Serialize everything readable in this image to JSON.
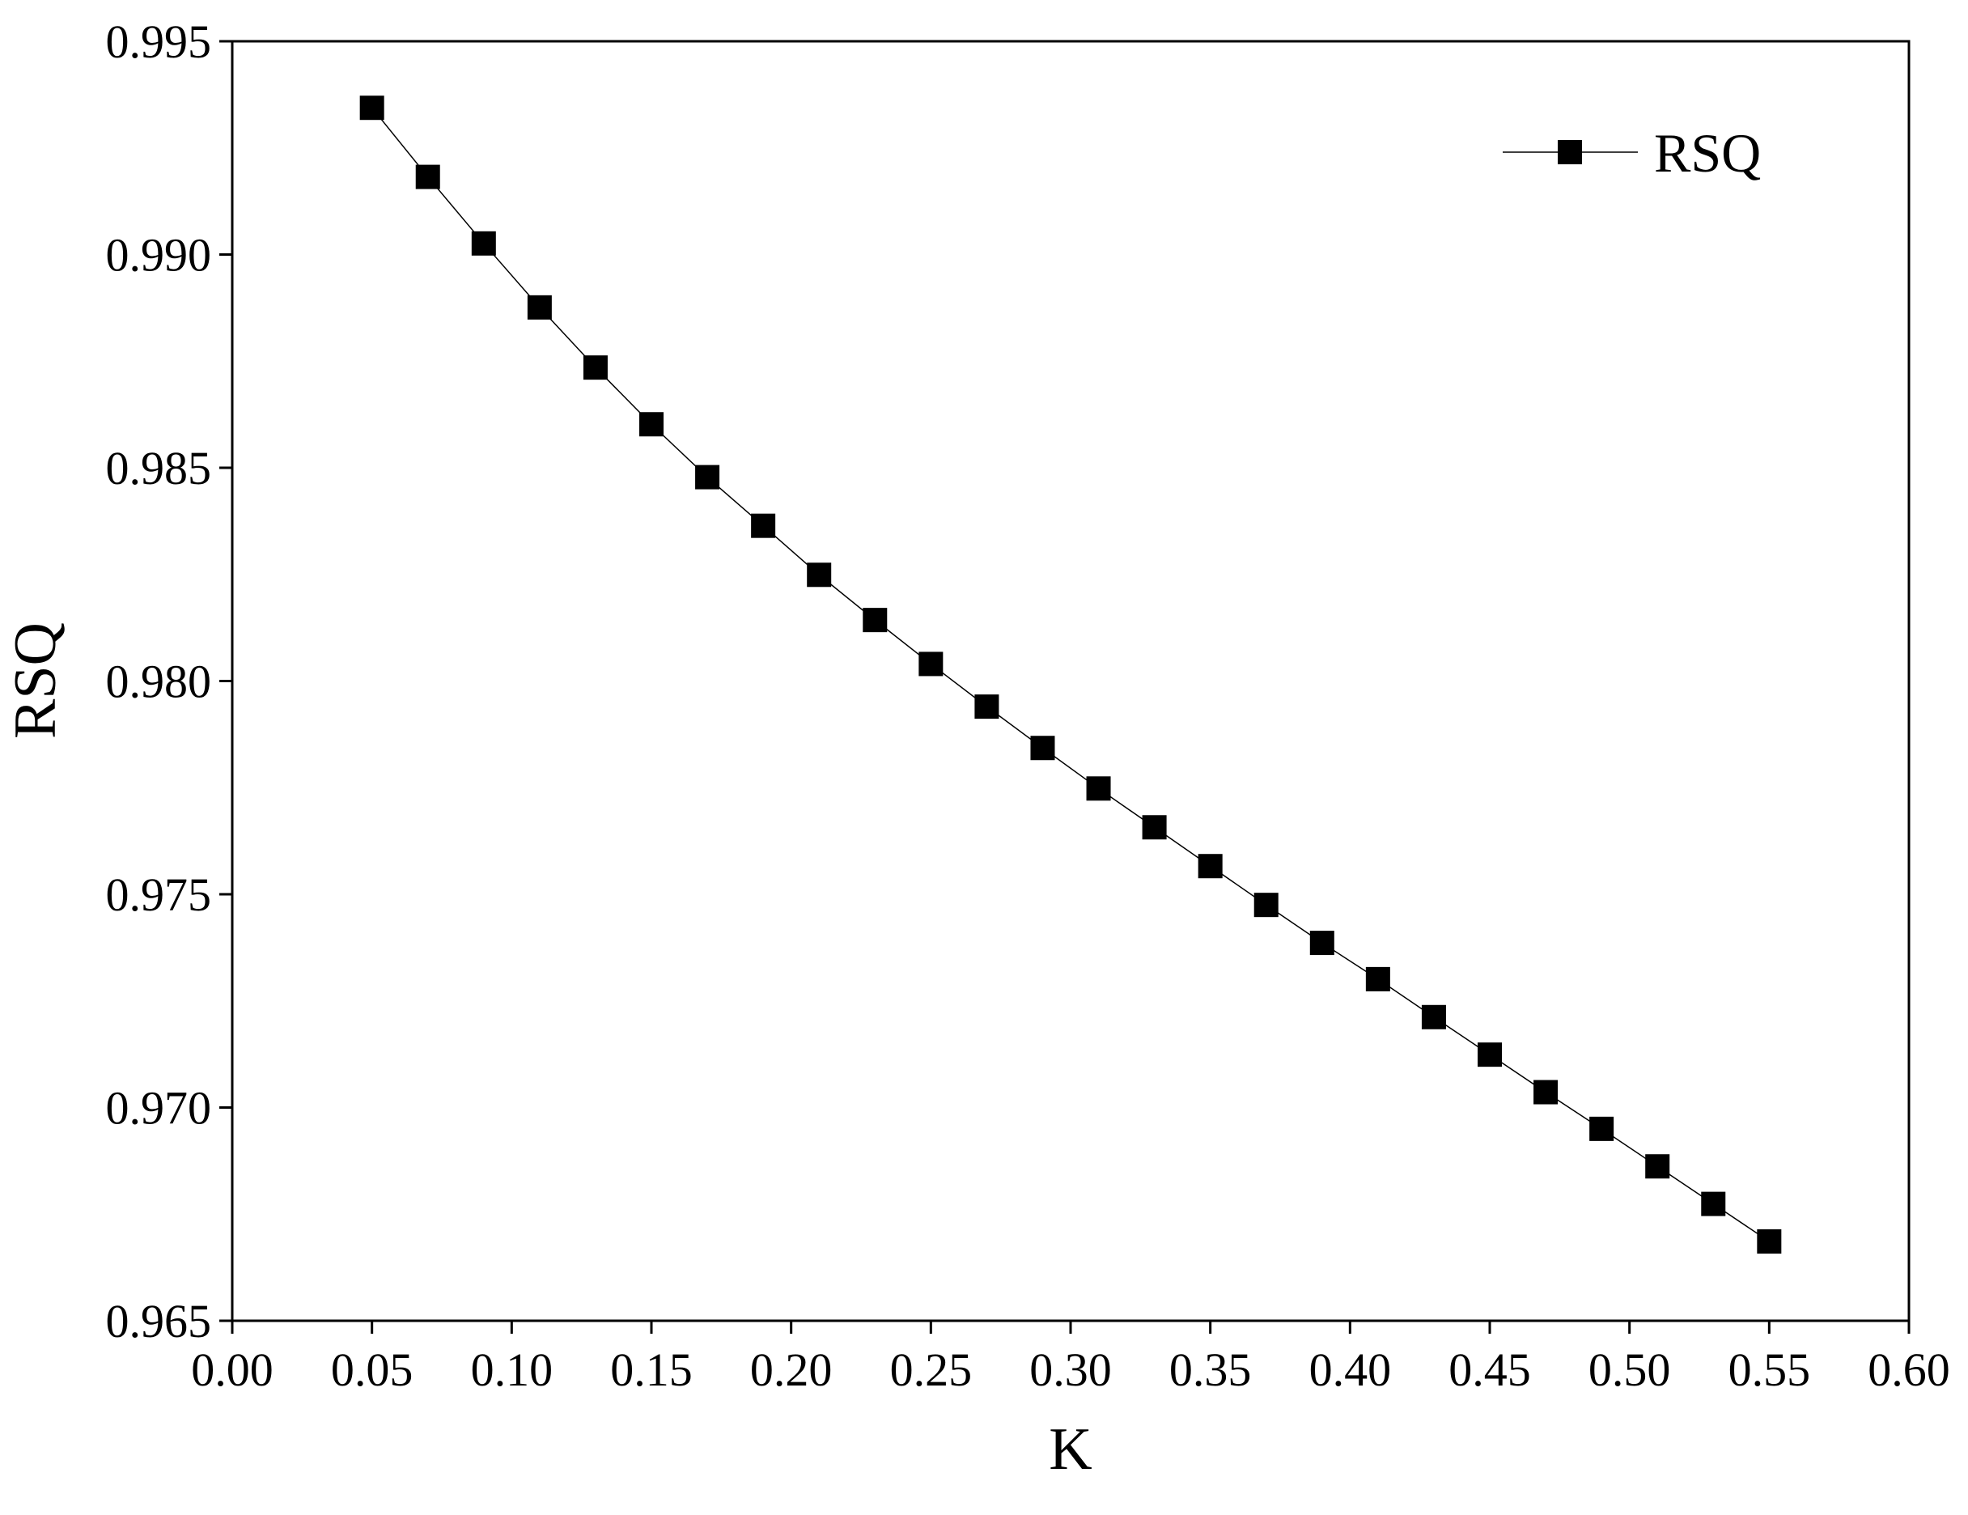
{
  "chart_data": {
    "type": "line",
    "x_label": "K",
    "y_label": "RSQ",
    "x": [
      0.05,
      0.07,
      0.09,
      0.11,
      0.13,
      0.15,
      0.17,
      0.19,
      0.21,
      0.23,
      0.25,
      0.27,
      0.29,
      0.31,
      0.33,
      0.35,
      0.37,
      0.39,
      0.41,
      0.43,
      0.45,
      0.47,
      0.49,
      0.51,
      0.53,
      0.55
    ],
    "series": [
      {
        "name": "RSQ",
        "color": "#000000",
        "values": [
          0.99344,
          0.99182,
          0.99026,
          0.98876,
          0.98735,
          0.98602,
          0.98478,
          0.98364,
          0.98249,
          0.98143,
          0.9804,
          0.9794,
          0.97843,
          0.97748,
          0.97657,
          0.97566,
          0.97475,
          0.97386,
          0.97301,
          0.97212,
          0.97124,
          0.97036,
          0.9695,
          0.96862,
          0.96774,
          0.96686
        ]
      }
    ],
    "xlim": [
      0,
      0.6
    ],
    "ylim": [
      0.965,
      0.995
    ],
    "xticks": [
      {
        "value": 0,
        "label": "0.00"
      },
      {
        "value": 0.05,
        "label": "0.05"
      },
      {
        "value": 0.1,
        "label": "0.10"
      },
      {
        "value": 0.15,
        "label": "0.15"
      },
      {
        "value": 0.2,
        "label": "0.20"
      },
      {
        "value": 0.25,
        "label": "0.25"
      },
      {
        "value": 0.3,
        "label": "0.30"
      },
      {
        "value": 0.35,
        "label": "0.35"
      },
      {
        "value": 0.4,
        "label": "0.40"
      },
      {
        "value": 0.45,
        "label": "0.45"
      },
      {
        "value": 0.5,
        "label": "0.50"
      },
      {
        "value": 0.55,
        "label": "0.55"
      },
      {
        "value": 0.6,
        "label": "0.60"
      }
    ],
    "yticks": [
      {
        "value": 0.965,
        "label": "0.965"
      },
      {
        "value": 0.97,
        "label": "0.970"
      },
      {
        "value": 0.975,
        "label": "0.975"
      },
      {
        "value": 0.98,
        "label": "0.980"
      },
      {
        "value": 0.985,
        "label": "0.985"
      },
      {
        "value": 0.99,
        "label": "0.990"
      },
      {
        "value": 0.995,
        "label": "0.995"
      }
    ],
    "grid": false,
    "legend": "upper right",
    "marker": "square"
  }
}
